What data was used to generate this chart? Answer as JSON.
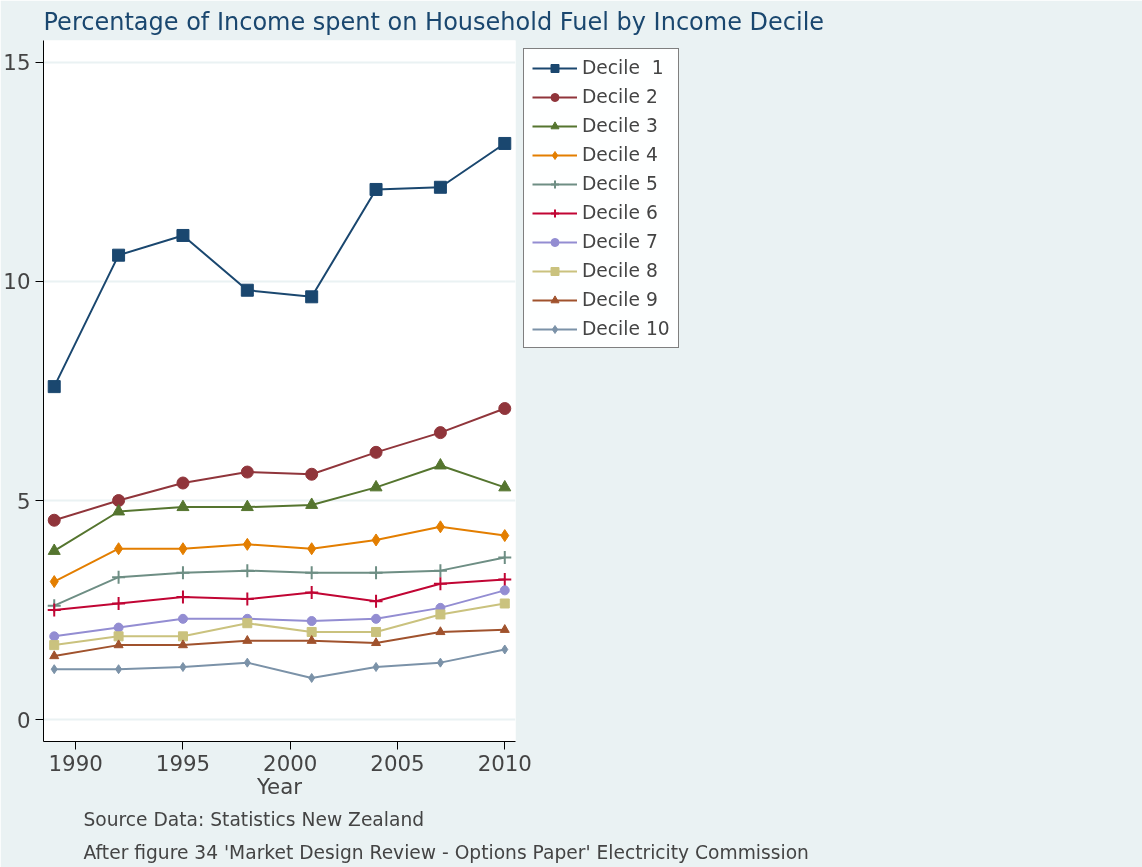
{
  "chart_data": {
    "type": "line",
    "title": "Percentage of Income spent on Household Fuel by Income Decile",
    "xlabel": "Year",
    "x": [
      1989,
      1992,
      1995,
      1998,
      2001,
      2004,
      2007,
      2010
    ],
    "xlim": [
      1988.5,
      2010.5
    ],
    "xticks": [
      1990,
      1995,
      2000,
      2005,
      2010
    ],
    "ylim": [
      -0.5,
      15.5
    ],
    "yticks": [
      0,
      5,
      10,
      15
    ],
    "grid": "y",
    "legend": "right",
    "annotations": [
      "Source Data: Statistics New Zealand",
      "After figure 34  'Market Design Review - Options Paper' Electricity Commission"
    ],
    "series": [
      {
        "name": "Decile  1",
        "color": "#1a476f",
        "marker": "square",
        "values": [
          7.6,
          10.6,
          11.05,
          9.8,
          9.65,
          12.1,
          12.15,
          13.15
        ]
      },
      {
        "name": "Decile 2",
        "color": "#90353b",
        "marker": "circle",
        "values": [
          4.55,
          5.0,
          5.4,
          5.65,
          5.6,
          6.1,
          6.55,
          7.1
        ]
      },
      {
        "name": "Decile 3",
        "color": "#55752f",
        "marker": "triangle",
        "values": [
          3.85,
          4.75,
          4.85,
          4.85,
          4.9,
          5.3,
          5.8,
          5.3
        ]
      },
      {
        "name": "Decile 4",
        "color": "#e37e00",
        "marker": "diamond",
        "values": [
          3.15,
          3.9,
          3.9,
          4.0,
          3.9,
          4.1,
          4.4,
          4.2
        ]
      },
      {
        "name": "Decile 5",
        "color": "#6e8e84",
        "marker": "cross",
        "values": [
          2.6,
          3.25,
          3.35,
          3.4,
          3.35,
          3.35,
          3.4,
          3.7
        ]
      },
      {
        "name": "Decile 6",
        "color": "#c10534",
        "marker": "cross",
        "values": [
          2.5,
          2.65,
          2.8,
          2.75,
          2.9,
          2.7,
          3.1,
          3.2
        ]
      },
      {
        "name": "Decile 7",
        "color": "#938dd2",
        "marker": "circle",
        "values": [
          1.9,
          2.1,
          2.3,
          2.3,
          2.25,
          2.3,
          2.55,
          2.95
        ]
      },
      {
        "name": "Decile 8",
        "color": "#cac27e",
        "marker": "square",
        "values": [
          1.7,
          1.9,
          1.9,
          2.2,
          2.0,
          2.0,
          2.4,
          2.65
        ]
      },
      {
        "name": "Decile 9",
        "color": "#a0522d",
        "marker": "triangle",
        "values": [
          1.45,
          1.7,
          1.7,
          1.8,
          1.8,
          1.75,
          2.0,
          2.05
        ]
      },
      {
        "name": "Decile 10",
        "color": "#7b92a8",
        "marker": "diamond",
        "values": [
          1.15,
          1.15,
          1.2,
          1.3,
          0.95,
          1.2,
          1.3,
          1.6
        ]
      }
    ]
  }
}
